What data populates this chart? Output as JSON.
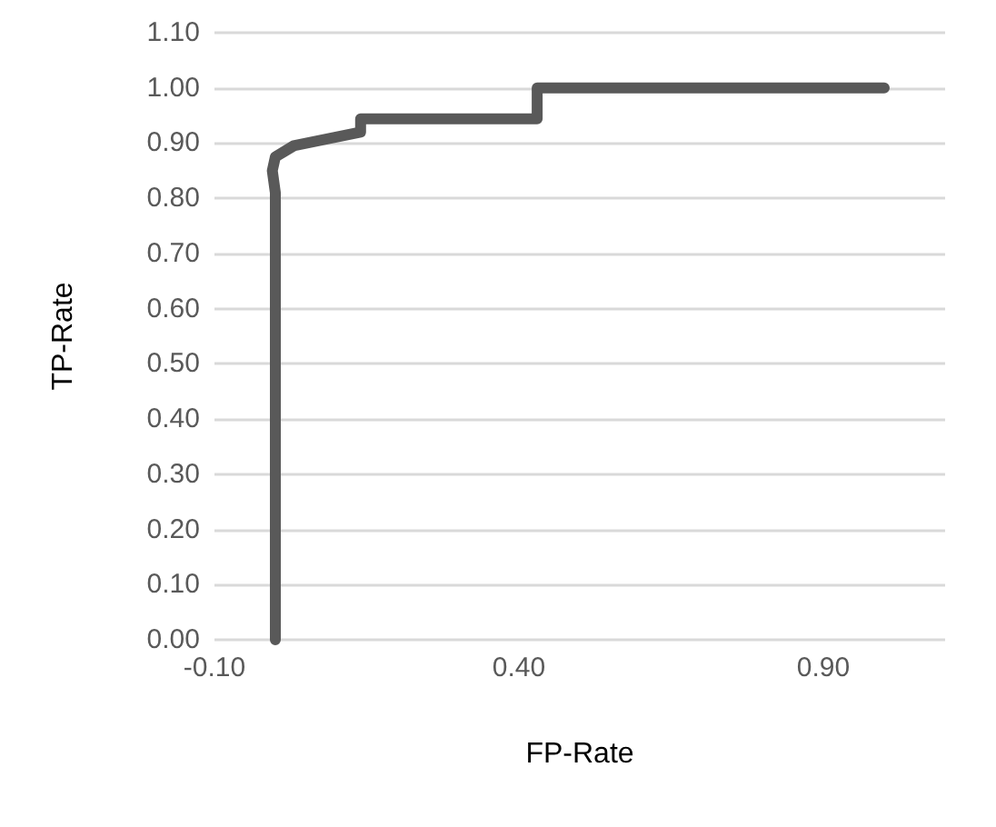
{
  "chart_data": {
    "type": "line",
    "xlabel": "FP-Rate",
    "ylabel": "TP-Rate",
    "x": [
      0,
      0,
      -0.005,
      0,
      0.03,
      0.14,
      0.14,
      0.43,
      0.43,
      1.0
    ],
    "series": [
      {
        "color": "#595959",
        "values": [
          0,
          0.81,
          0.85,
          0.875,
          0.895,
          0.92,
          0.944,
          0.944,
          1.0,
          1.0
        ]
      }
    ],
    "xlim": [
      -0.1,
      1.1
    ],
    "xticks": [
      {
        "value": -0.1,
        "label": "-0.10"
      },
      {
        "value": 0.4,
        "label": "0.40"
      },
      {
        "value": 0.9,
        "label": "0.90"
      }
    ],
    "ylim": [
      0,
      1.1
    ],
    "yticks": [
      {
        "value": 0,
        "label": "0.00"
      },
      {
        "value": 0.1,
        "label": "0.10"
      },
      {
        "value": 0.2,
        "label": "0.20"
      },
      {
        "value": 0.3,
        "label": "0.30"
      },
      {
        "value": 0.4,
        "label": "0.40"
      },
      {
        "value": 0.5,
        "label": "0.50"
      },
      {
        "value": 0.6,
        "label": "0.60"
      },
      {
        "value": 0.7,
        "label": "0.70"
      },
      {
        "value": 0.8,
        "label": "0.80"
      },
      {
        "value": 0.9,
        "label": "0.90"
      },
      {
        "value": 1.0,
        "label": "1.00"
      },
      {
        "value": 1.1,
        "label": "1.10"
      }
    ],
    "grid": "y",
    "marker": "none",
    "line_style": "solid"
  }
}
